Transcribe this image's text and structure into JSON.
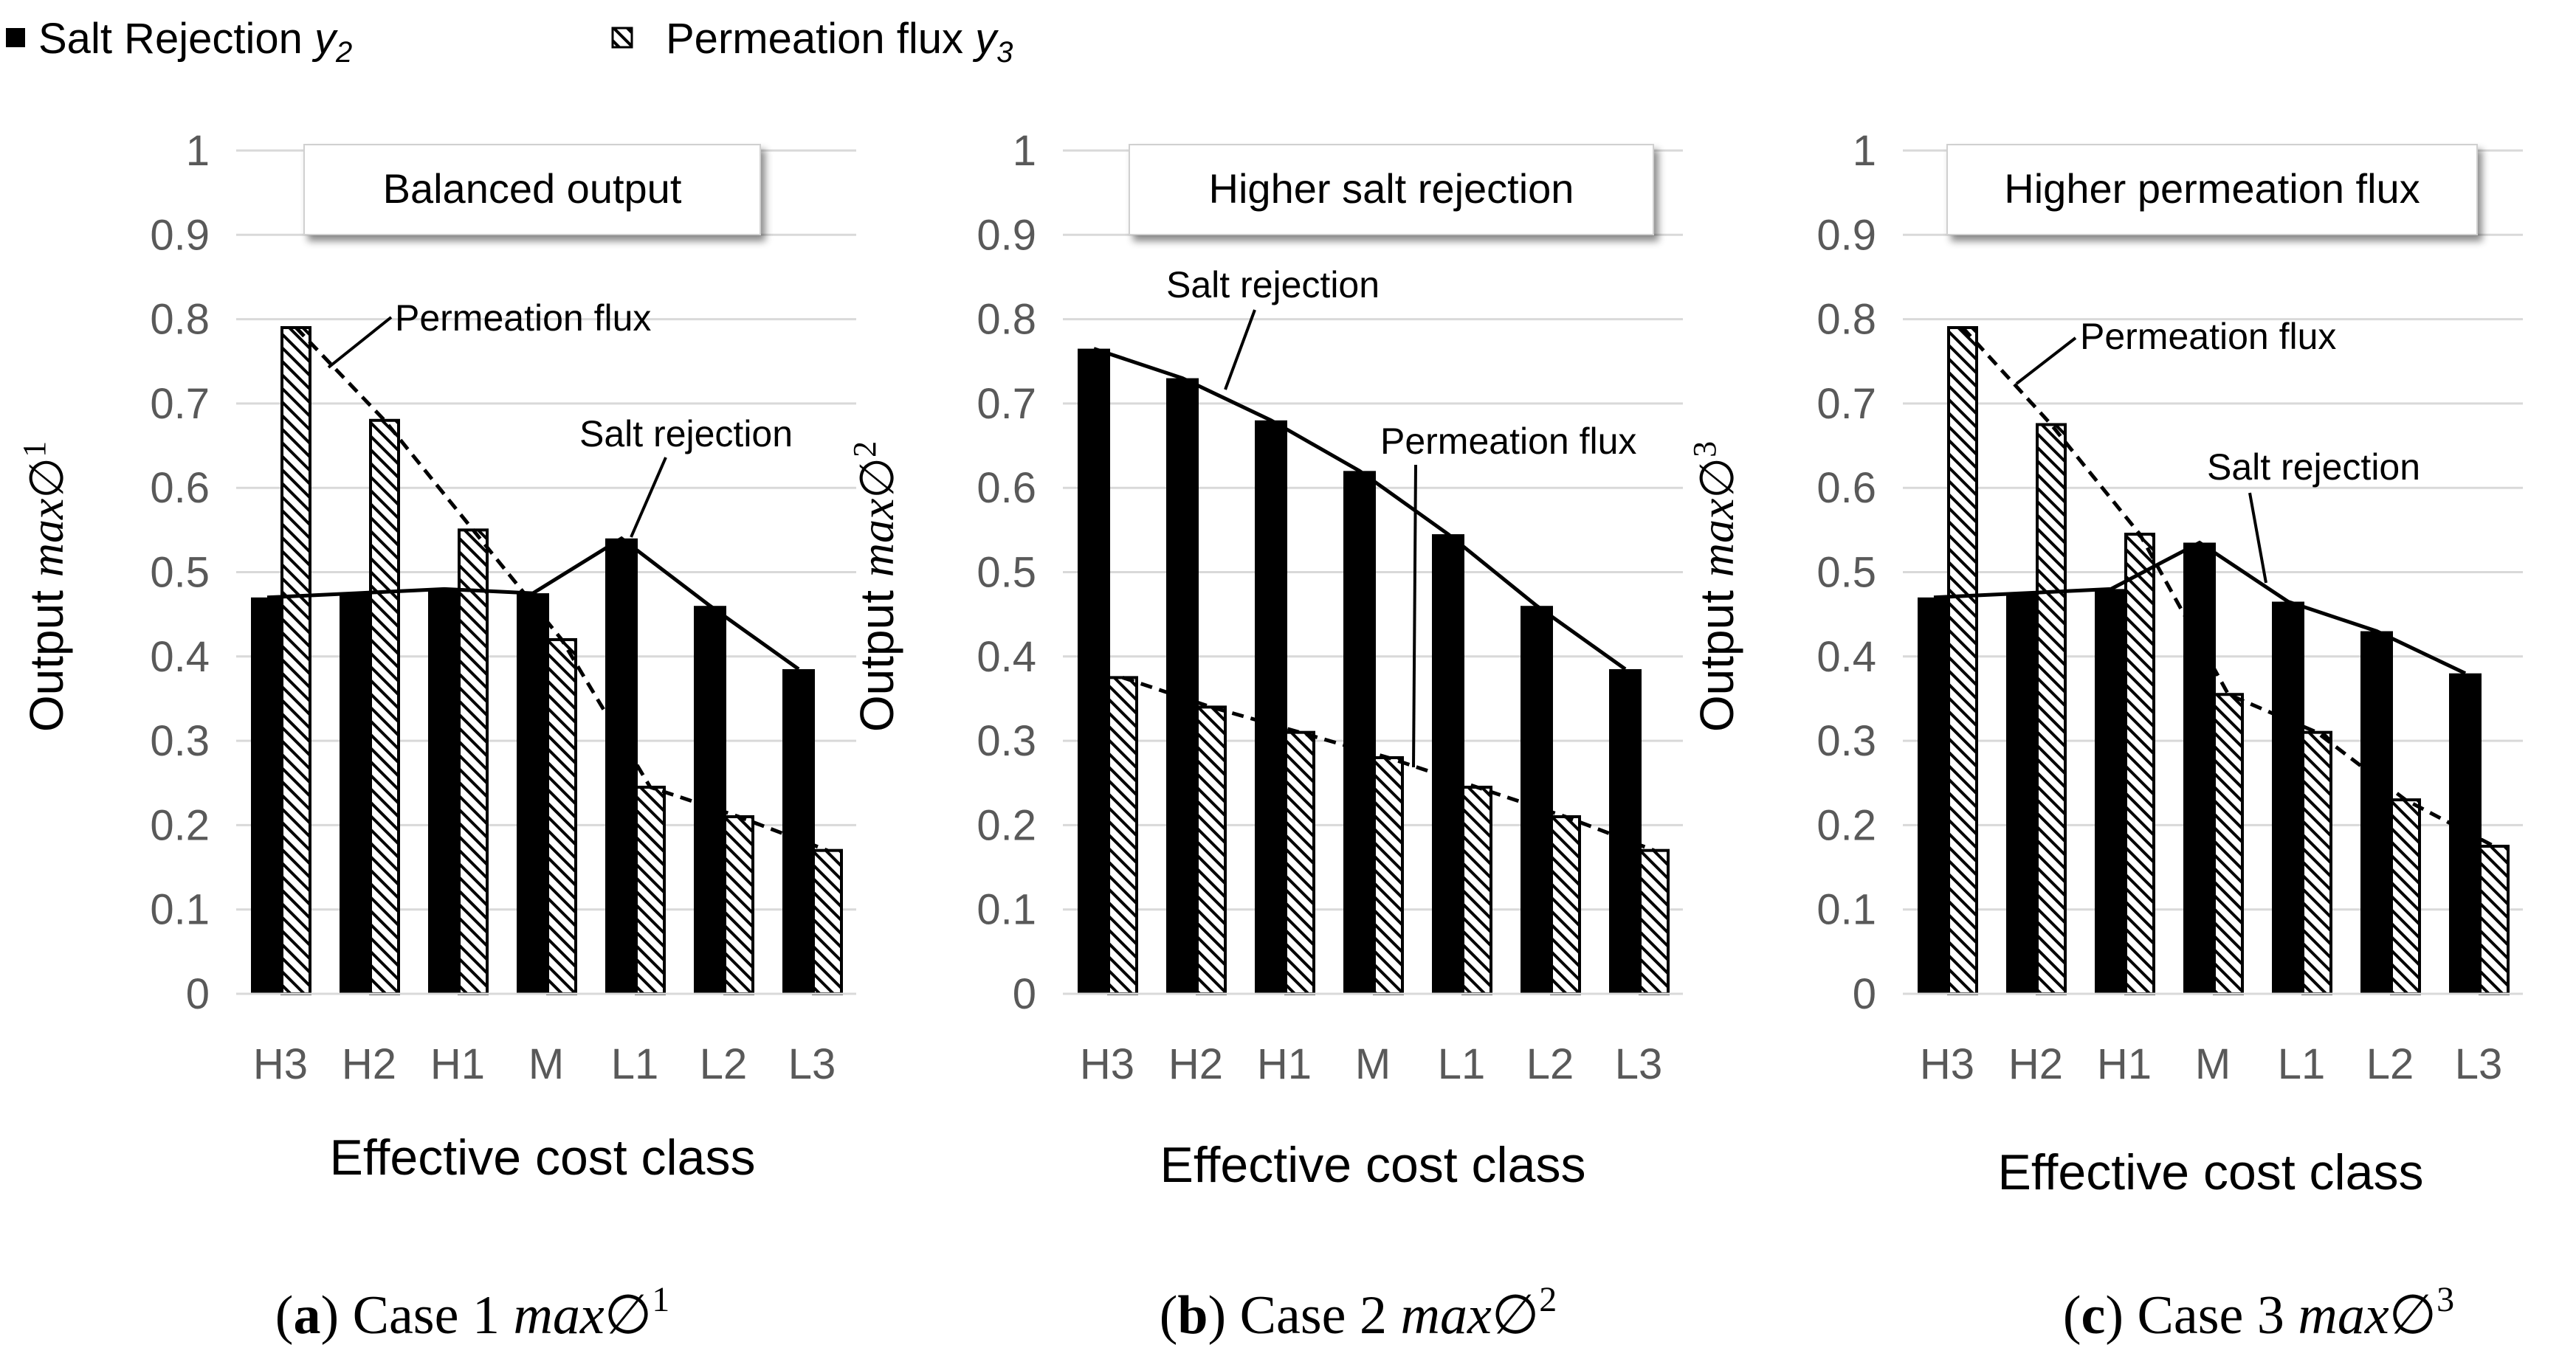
{
  "legend": {
    "items": [
      {
        "label": "Salt Rejection",
        "var_base": "y",
        "var_sub": "2",
        "pattern": "solid"
      },
      {
        "label": "Permeation flux",
        "var_base": "y",
        "var_sub": "3",
        "pattern": "hatched"
      }
    ]
  },
  "colors": {
    "bar_solid": "#000000",
    "axis_text": "#595959",
    "grid": "#d9d9d9",
    "text": "#000000"
  },
  "chart_data": [
    {
      "type": "bar",
      "title": "Balanced output",
      "xlabel": "Effective cost class",
      "ylabel": {
        "prefix": "Output ",
        "var": "max",
        "symbol": "∅",
        "sup": "1"
      },
      "categories": [
        "H3",
        "H2",
        "H1",
        "M",
        "L1",
        "L2",
        "L3"
      ],
      "ylim": [
        0,
        1
      ],
      "yticks": [
        "0",
        "0.1",
        "0.2",
        "0.3",
        "0.4",
        "0.5",
        "0.6",
        "0.7",
        "0.8",
        "0.9",
        "1"
      ],
      "series": [
        {
          "name": "Salt rejection",
          "values": [
            0.47,
            0.475,
            0.48,
            0.475,
            0.54,
            0.46,
            0.385
          ]
        },
        {
          "name": "Permeation flux",
          "values": [
            0.79,
            0.68,
            0.55,
            0.42,
            0.245,
            0.21,
            0.17
          ]
        }
      ],
      "annotations": [
        {
          "text": "Permeation flux",
          "series": "Permeation flux"
        },
        {
          "text": "Salt rejection",
          "series": "Salt rejection"
        }
      ],
      "caption": {
        "letter": "a",
        "text": "Case 1",
        "var": "max",
        "symbol": "∅",
        "sup": "1"
      }
    },
    {
      "type": "bar",
      "title": "Higher salt rejection",
      "xlabel": "Effective cost class",
      "ylabel": {
        "prefix": "Output ",
        "var": "max",
        "symbol": "∅",
        "sup": "2"
      },
      "categories": [
        "H3",
        "H2",
        "H1",
        "M",
        "L1",
        "L2",
        "L3"
      ],
      "ylim": [
        0,
        1
      ],
      "yticks": [
        "0",
        "0.1",
        "0.2",
        "0.3",
        "0.4",
        "0.5",
        "0.6",
        "0.7",
        "0.8",
        "0.9",
        "1"
      ],
      "series": [
        {
          "name": "Salt rejection",
          "values": [
            0.765,
            0.73,
            0.68,
            0.62,
            0.545,
            0.46,
            0.385
          ]
        },
        {
          "name": "Permeation flux",
          "values": [
            0.375,
            0.34,
            0.31,
            0.28,
            0.245,
            0.21,
            0.17
          ]
        }
      ],
      "annotations": [
        {
          "text": "Salt rejection",
          "series": "Salt rejection"
        },
        {
          "text": "Permeation flux",
          "series": "Permeation flux"
        }
      ],
      "caption": {
        "letter": "b",
        "text": "Case 2",
        "var": "max",
        "symbol": "∅",
        "sup": "2"
      }
    },
    {
      "type": "bar",
      "title": "Higher permeation flux",
      "xlabel": "Effective cost class",
      "ylabel": {
        "prefix": "Output ",
        "var": "max",
        "symbol": "∅",
        "sup": "3"
      },
      "categories": [
        "H3",
        "H2",
        "H1",
        "M",
        "L1",
        "L2",
        "L3"
      ],
      "ylim": [
        0,
        1
      ],
      "yticks": [
        "0",
        "0.1",
        "0.2",
        "0.3",
        "0.4",
        "0.5",
        "0.6",
        "0.7",
        "0.8",
        "0.9",
        "1"
      ],
      "series": [
        {
          "name": "Salt rejection",
          "values": [
            0.47,
            0.475,
            0.48,
            0.535,
            0.465,
            0.43,
            0.38
          ]
        },
        {
          "name": "Permeation flux",
          "values": [
            0.79,
            0.675,
            0.545,
            0.355,
            0.31,
            0.23,
            0.175
          ]
        }
      ],
      "annotations": [
        {
          "text": "Permeation flux",
          "series": "Permeation flux"
        },
        {
          "text": "Salt rejection",
          "series": "Salt rejection"
        }
      ],
      "caption": {
        "letter": "c",
        "text": "Case 3",
        "var": "max",
        "symbol": "∅",
        "sup": "3"
      }
    }
  ]
}
